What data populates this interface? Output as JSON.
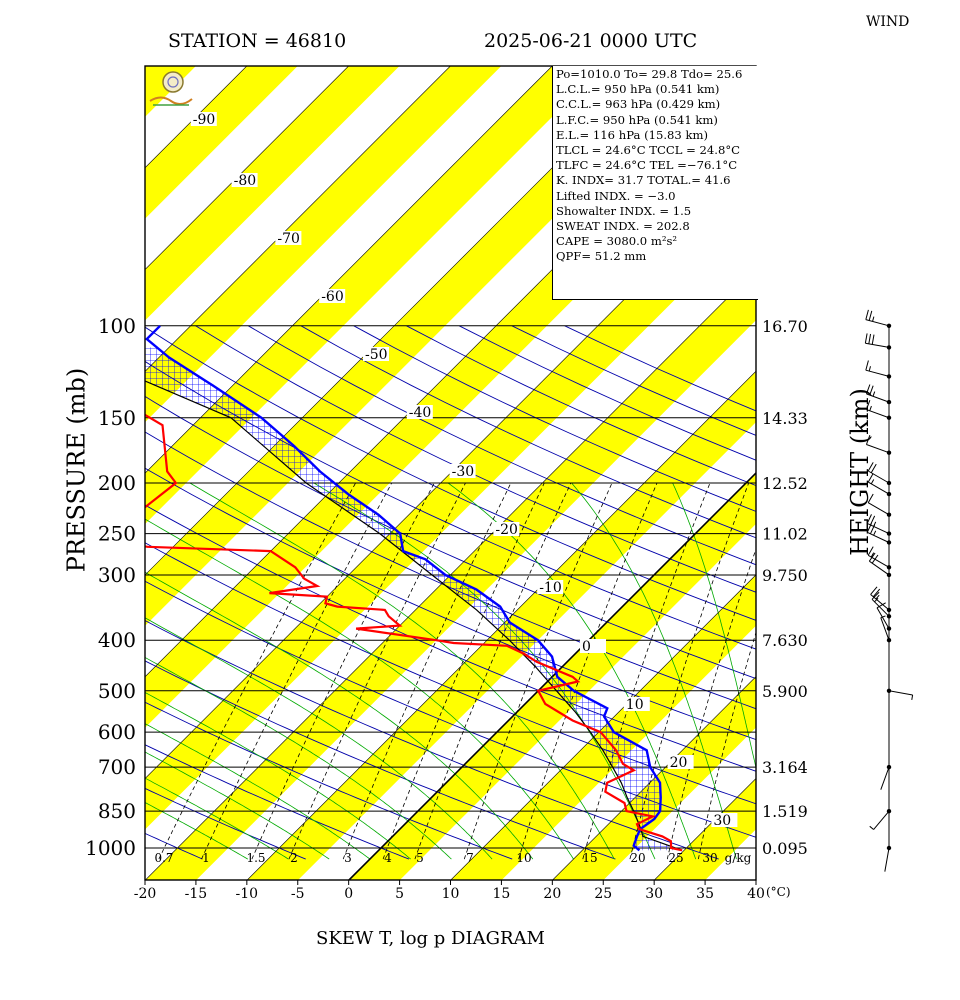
{
  "header": {
    "station": "STATION = 46810",
    "datetime": "2025-06-21 0000 UTC",
    "wind_title": "WIND",
    "bottom_title": "SKEW T, log p DIAGRAM"
  },
  "info_box": [
    "Po=1010.0 To= 29.8 Tdo= 25.6",
    "L.C.L.= 950 hPa (0.541 km)",
    "C.C.L.= 963 hPa (0.429 km)",
    "L.F.C.= 950 hPa (0.541 km)",
    "E.L.= 116 hPa (15.83 km)",
    "TLCL = 24.6°C TCCL = 24.8°C",
    "TLFC = 24.6°C TEL =−76.1°C",
    "K. INDX= 31.7  TOTAL.= 41.6",
    "Lifted INDX. =  −3.0",
    "Showalter INDX. =    1.5",
    "SWEAT INDX. =  202.8",
    "CAPE = 3080.0 m²s²",
    "QPF= 51.2 mm"
  ],
  "colors": {
    "temperature": "#ff0000",
    "dewpoint": "#0000ff",
    "band": "#ffff00",
    "isotherm": "#000000",
    "dry_adiabat": "#0000aa",
    "moist_adiabat": "#00aa00",
    "mixing_ratio": "#000000"
  },
  "chart_data": {
    "type": "skew-T log-p",
    "xlabel": "(°C)",
    "ylabel": "PRESSURE (mb)",
    "y2label": "HEIGHT (km)",
    "x_ticks": [
      -20,
      -15,
      -10,
      -5,
      0,
      5,
      10,
      15,
      20,
      25,
      30,
      35,
      40
    ],
    "pressure_ticks": [
      100,
      150,
      200,
      250,
      300,
      400,
      500,
      600,
      700,
      850,
      1000
    ],
    "height_ticks": [
      {
        "p": 100,
        "label": "16.70"
      },
      {
        "p": 150,
        "label": "14.33"
      },
      {
        "p": 200,
        "label": "12.52"
      },
      {
        "p": 250,
        "label": "11.02"
      },
      {
        "p": 300,
        "label": "9.750"
      },
      {
        "p": 400,
        "label": "7.630"
      },
      {
        "p": 500,
        "label": "5.900"
      },
      {
        "p": 700,
        "label": "3.164"
      },
      {
        "p": 850,
        "label": "1.519"
      },
      {
        "p": 1000,
        "label": "0.095"
      }
    ],
    "isotherm_labels": [
      "-90",
      "-80",
      "-70",
      "-60",
      "-50",
      "-40",
      "-30",
      "-20",
      "-10",
      "0",
      "10",
      "20",
      "30"
    ],
    "mixing_ratio_labels": [
      "0.7",
      "1",
      "1.5",
      "2",
      "3",
      "4",
      "5",
      "7",
      "10",
      "15",
      "20",
      "25",
      "30",
      "g/kg"
    ],
    "temperature": [
      [
        1010,
        29.8
      ],
      [
        1000,
        28.5
      ],
      [
        970,
        27.8
      ],
      [
        950,
        26.5
      ],
      [
        920,
        23.5
      ],
      [
        900,
        22.8
      ],
      [
        870,
        23.6
      ],
      [
        850,
        20.5
      ],
      [
        820,
        19.5
      ],
      [
        780,
        16.5
      ],
      [
        750,
        15.8
      ],
      [
        710,
        17.2
      ],
      [
        690,
        15.5
      ],
      [
        650,
        13.5
      ],
      [
        600,
        10.2
      ],
      [
        570,
        6.3
      ],
      [
        530,
        2.0
      ],
      [
        500,
        0.0
      ],
      [
        480,
        3.0
      ],
      [
        470,
        2.0
      ],
      [
        440,
        -3.0
      ],
      [
        425,
        -5.0
      ],
      [
        410,
        -7.5
      ],
      [
        405,
        -13.0
      ],
      [
        400,
        -15.0
      ],
      [
        380,
        -24.0
      ],
      [
        375,
        -20.0
      ],
      [
        360,
        -22.0
      ],
      [
        350,
        -23.0
      ],
      [
        345,
        -28.0
      ],
      [
        340,
        -29.5
      ],
      [
        330,
        -30.0
      ],
      [
        325,
        -36.0
      ],
      [
        315,
        -32.0
      ],
      [
        305,
        -34.0
      ],
      [
        290,
        -36.0
      ],
      [
        270,
        -40.0
      ],
      [
        265,
        -52.5
      ],
      [
        260,
        -56.0
      ],
      [
        235,
        -57.0
      ],
      [
        200,
        -56.0
      ],
      [
        190,
        -58.0
      ],
      [
        155,
        -63.0
      ],
      [
        145,
        -67.0
      ],
      [
        130,
        -72.0
      ],
      [
        110,
        -78.0
      ],
      [
        100,
        -80.0
      ]
    ],
    "dewpoint": [
      [
        1010,
        25.6
      ],
      [
        990,
        24.6
      ],
      [
        950,
        24.0
      ],
      [
        920,
        23.6
      ],
      [
        880,
        24.0
      ],
      [
        850,
        23.8
      ],
      [
        800,
        22.5
      ],
      [
        750,
        21.0
      ],
      [
        700,
        18.5
      ],
      [
        650,
        16.5
      ],
      [
        600,
        11.5
      ],
      [
        560,
        9.0
      ],
      [
        540,
        8.5
      ],
      [
        500,
        3.5
      ],
      [
        470,
        0.5
      ],
      [
        430,
        -2.0
      ],
      [
        400,
        -5.0
      ],
      [
        370,
        -9.5
      ],
      [
        345,
        -12.0
      ],
      [
        320,
        -16.0
      ],
      [
        300,
        -20.5
      ],
      [
        280,
        -24.0
      ],
      [
        270,
        -27.0
      ],
      [
        250,
        -29.0
      ],
      [
        230,
        -33.0
      ],
      [
        210,
        -38.0
      ],
      [
        190,
        -43.0
      ],
      [
        170,
        -48.0
      ],
      [
        150,
        -54.0
      ],
      [
        130,
        -62.0
      ],
      [
        115,
        -69.0
      ],
      [
        106,
        -73.0
      ],
      [
        100,
        -73.0
      ]
    ],
    "parcel": [
      [
        1010,
        29.8
      ],
      [
        950,
        24.6
      ],
      [
        900,
        23.0
      ],
      [
        850,
        21.2
      ],
      [
        800,
        19.2
      ],
      [
        750,
        17.2
      ],
      [
        700,
        14.8
      ],
      [
        650,
        12.2
      ],
      [
        600,
        9.2
      ],
      [
        550,
        5.8
      ],
      [
        500,
        1.8
      ],
      [
        450,
        -2.6
      ],
      [
        400,
        -7.8
      ],
      [
        350,
        -14.0
      ],
      [
        300,
        -21.8
      ],
      [
        250,
        -31.0
      ],
      [
        200,
        -43.2
      ],
      [
        150,
        -57.0
      ],
      [
        116,
        -76.1
      ],
      [
        100,
        -80.0
      ]
    ],
    "wind_barbs": [
      {
        "p": 100,
        "dir": 285,
        "speed": 25
      },
      {
        "p": 110,
        "dir": 280,
        "speed": 30
      },
      {
        "p": 125,
        "dir": 285,
        "speed": 15
      },
      {
        "p": 140,
        "dir": 290,
        "speed": 25
      },
      {
        "p": 150,
        "dir": 290,
        "speed": 15
      },
      {
        "p": 175,
        "dir": 290,
        "speed": 10
      },
      {
        "p": 200,
        "dir": 300,
        "speed": 20
      },
      {
        "p": 210,
        "dir": 300,
        "speed": 15
      },
      {
        "p": 230,
        "dir": 300,
        "speed": 10
      },
      {
        "p": 250,
        "dir": 295,
        "speed": 25
      },
      {
        "p": 260,
        "dir": 295,
        "speed": 25
      },
      {
        "p": 290,
        "dir": 300,
        "speed": 15
      },
      {
        "p": 300,
        "dir": 305,
        "speed": 20
      },
      {
        "p": 350,
        "dir": 310,
        "speed": 25
      },
      {
        "p": 360,
        "dir": 315,
        "speed": 15
      },
      {
        "p": 380,
        "dir": 330,
        "speed": 10
      },
      {
        "p": 400,
        "dir": 340,
        "speed": 5
      },
      {
        "p": 500,
        "dir": 100,
        "speed": 5
      },
      {
        "p": 700,
        "dir": 200,
        "speed": 3
      },
      {
        "p": 850,
        "dir": 220,
        "speed": 5
      },
      {
        "p": 1000,
        "dir": 190,
        "speed": 3
      }
    ]
  }
}
